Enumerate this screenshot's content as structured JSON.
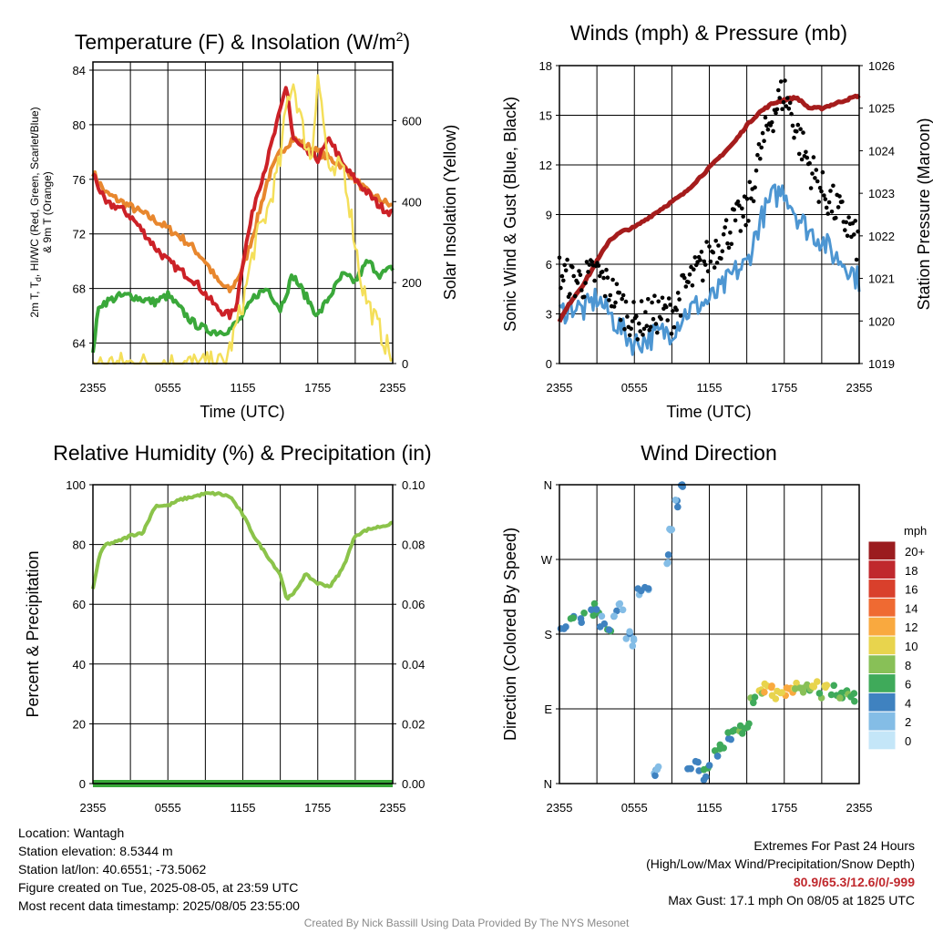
{
  "panels": {
    "temperature": {
      "title_main": "Temperature (F) & Insolation (W/m",
      "title_sup": "2",
      "title_end": ")",
      "ylabel_left_line1": "2m T, T",
      "ylabel_left_sub": "d",
      "ylabel_left_rest": ", HI/WC (Red, Green, Scarlet/Blue)",
      "ylabel_left_line2": "& 9m T (Orange)",
      "ylabel_right": "Solar Insolation (Yellow)",
      "xlabel": "Time (UTC)"
    },
    "winds": {
      "title": "Winds (mph) & Pressure (mb)",
      "ylabel_left": "Sonic Wind & Gust (Blue, Black)",
      "ylabel_right": "Station Pressure (Maroon)",
      "xlabel": "Time (UTC)"
    },
    "humidity": {
      "title": "Relative Humidity (%) & Precipitation (in)",
      "ylabel_left": "Percent & Precipitation"
    },
    "direction": {
      "title": "Wind Direction",
      "ylabel_left": "Direction (Colored By Speed)",
      "legend_unit": "mph"
    }
  },
  "chart_data": [
    {
      "type": "line",
      "panel": "temperature",
      "x_ticks": [
        "2355",
        "0555",
        "1155",
        "1755",
        "2355"
      ],
      "x_hours": [
        0,
        6,
        12,
        18,
        24
      ],
      "ylim_left": [
        62.5,
        84.6
      ],
      "yticks_left": [
        64,
        68,
        72,
        76,
        80,
        84
      ],
      "ylim_right": [
        0,
        745
      ],
      "yticks_right": [
        0,
        200,
        400,
        600
      ],
      "series": [
        {
          "axis": "left",
          "color": "#e8872e",
          "x": [
            0,
            1,
            2,
            3,
            4,
            5,
            6,
            7,
            8,
            9,
            10,
            11,
            12,
            13,
            14,
            15,
            16,
            17,
            18,
            19,
            20,
            21,
            22,
            23,
            24
          ],
          "y": [
            76.5,
            75,
            74.5,
            74,
            73.5,
            73,
            72.4,
            71.8,
            71,
            70,
            68.5,
            67.8,
            69.5,
            72.5,
            76,
            78,
            79,
            78.5,
            78,
            77.5,
            77,
            76,
            75,
            74.5,
            74
          ]
        },
        {
          "axis": "left",
          "color": "#cc2127",
          "x": [
            0,
            1,
            2,
            3,
            4,
            5,
            6,
            7,
            8,
            9,
            10,
            11,
            11.5,
            12,
            13,
            14,
            15,
            15.5,
            16,
            17,
            18,
            19,
            20,
            21,
            22,
            23,
            24
          ],
          "y": [
            76.5,
            74.2,
            74,
            73.3,
            72.2,
            71,
            70,
            69.3,
            68.7,
            67.6,
            66.5,
            66,
            66.8,
            70,
            74.5,
            77.5,
            81,
            83,
            79,
            78,
            77.5,
            79,
            77,
            76,
            75,
            74,
            73.5
          ]
        },
        {
          "axis": "left",
          "color": "#3aa83a",
          "x": [
            0,
            0.5,
            1,
            2,
            3,
            4,
            5,
            6,
            7,
            8,
            9,
            10,
            11,
            12,
            13,
            14,
            15,
            16,
            17,
            18,
            19,
            20,
            21,
            22,
            23,
            24
          ],
          "y": [
            63.5,
            66.8,
            67,
            67.4,
            67.5,
            67.2,
            67,
            67.5,
            66.5,
            65.5,
            65,
            64.8,
            65,
            66,
            67.5,
            68,
            66.5,
            69,
            67.5,
            66,
            67.5,
            69,
            68.5,
            70,
            69,
            69.5
          ]
        },
        {
          "axis": "right",
          "color": "#f4df5a",
          "x": [
            0,
            10.5,
            11,
            12,
            13,
            14,
            15,
            15.5,
            16,
            17,
            17.5,
            18,
            19,
            20,
            21,
            21.5,
            22,
            23,
            24
          ],
          "y": [
            0,
            0,
            40,
            150,
            300,
            380,
            500,
            640,
            700,
            550,
            500,
            720,
            450,
            500,
            300,
            200,
            150,
            80,
            10
          ]
        }
      ]
    },
    {
      "type": "scatter",
      "panel": "winds",
      "x_ticks": [
        "2355",
        "0555",
        "1155",
        "1755",
        "2355"
      ],
      "x_hours": [
        0,
        6,
        12,
        18,
        24
      ],
      "ylim_left": [
        0,
        18
      ],
      "yticks_left": [
        0,
        3,
        6,
        9,
        12,
        15,
        18
      ],
      "ylim_right": [
        1019,
        1026
      ],
      "yticks_right": [
        1019,
        1020,
        1021,
        1022,
        1023,
        1024,
        1025,
        1026
      ],
      "series": [
        {
          "role": "pressure",
          "axis": "right",
          "color": "#a51c1c",
          "x": [
            0,
            1,
            2,
            3,
            4,
            5,
            6,
            7,
            8,
            9,
            10,
            11,
            12,
            13,
            14,
            15,
            16,
            17,
            18,
            19,
            20,
            21,
            22,
            23,
            24
          ],
          "y": [
            1020,
            1020.5,
            1020.9,
            1021.4,
            1021.9,
            1022.1,
            1022.2,
            1022.4,
            1022.6,
            1022.8,
            1023,
            1023.3,
            1023.6,
            1023.9,
            1024.2,
            1024.6,
            1024.9,
            1025.1,
            1025.2,
            1025.25,
            1025,
            1025,
            1025.1,
            1025.2,
            1025.3
          ]
        },
        {
          "role": "wind",
          "axis": "left",
          "color": "#4d96d2",
          "x": [
            0,
            1,
            2,
            3,
            4,
            5,
            6,
            7,
            8,
            9,
            10,
            11,
            12,
            13,
            14,
            15,
            16,
            17,
            18,
            19,
            20,
            21,
            22,
            23,
            24
          ],
          "y": [
            3,
            3.5,
            3.2,
            4,
            3,
            2,
            1.2,
            1.5,
            1.8,
            2,
            3,
            3.5,
            3.8,
            4.5,
            5.5,
            6,
            8.5,
            10,
            10.5,
            9,
            8,
            7.5,
            6.5,
            6,
            5
          ]
        },
        {
          "role": "gust",
          "axis": "left",
          "color": "#000000",
          "x": [
            0,
            1,
            2,
            3,
            4,
            5,
            6,
            7,
            8,
            9,
            10,
            11,
            12,
            13,
            14,
            15,
            16,
            17,
            18,
            19,
            20,
            21,
            22,
            23,
            24
          ],
          "y": [
            5.5,
            5,
            5,
            5.5,
            4.5,
            3.5,
            2.5,
            2.8,
            3,
            3,
            4.5,
            5.5,
            6.5,
            7.5,
            8.5,
            9,
            12.5,
            15,
            16.5,
            14,
            12,
            10.5,
            9.5,
            8.5,
            7
          ]
        }
      ]
    },
    {
      "type": "line",
      "panel": "humidity",
      "x_ticks": [
        "2355",
        "0555",
        "1155",
        "1755",
        "2355"
      ],
      "x_hours": [
        0,
        6,
        12,
        18,
        24
      ],
      "ylim_left": [
        0,
        100
      ],
      "yticks_left": [
        0,
        20,
        40,
        60,
        80,
        100
      ],
      "ylim_right": [
        0,
        0.1
      ],
      "yticks_right": [
        "0.00",
        "0.02",
        "0.04",
        "0.06",
        "0.08",
        "0.10"
      ],
      "series": [
        {
          "axis": "left",
          "color": "#8bc34a",
          "x": [
            0,
            0.5,
            1,
            2,
            3,
            4,
            5,
            6,
            7,
            8,
            9,
            10,
            11,
            12,
            13,
            14,
            15,
            15.5,
            16,
            17,
            18,
            19,
            20,
            21,
            22,
            23,
            24
          ],
          "y": [
            65,
            76,
            80,
            81,
            83,
            84,
            93,
            93,
            95,
            96,
            97,
            97,
            96,
            90,
            82,
            76,
            70,
            62,
            63,
            70,
            67,
            66,
            72,
            83,
            85,
            86,
            87
          ]
        },
        {
          "axis": "right",
          "color": "#39a839",
          "x": [
            0,
            24
          ],
          "y": [
            0,
            0
          ]
        }
      ]
    },
    {
      "type": "scatter",
      "panel": "direction",
      "x_ticks": [
        "2355",
        "0555",
        "1155",
        "1755",
        "2355"
      ],
      "x_hours": [
        0,
        6,
        12,
        18,
        24
      ],
      "y_ticks": [
        "N",
        "E",
        "S",
        "W",
        "N"
      ],
      "ylim_deg": [
        0,
        360
      ],
      "legend": {
        "labels": [
          "20+",
          "18",
          "16",
          "14",
          "12",
          "10",
          "8",
          "6",
          "4",
          "2",
          "0"
        ],
        "colors": [
          "#9b1c1f",
          "#c0282d",
          "#d9402c",
          "#ef6a32",
          "#f9a93f",
          "#e8d44d",
          "#88c057",
          "#3faa5a",
          "#3f82c0",
          "#84bde6",
          "#c4e6f8"
        ]
      },
      "x": [
        0.3,
        1,
        1.8,
        2.5,
        3,
        3.5,
        4,
        4.5,
        5,
        5.5,
        6,
        6.5,
        7,
        7.5,
        8,
        8.5,
        9,
        9.5,
        10,
        10.5,
        11,
        11.5,
        12,
        12.5,
        13,
        13.5,
        14,
        14.5,
        15,
        15.5,
        16,
        16.5,
        17,
        17.5,
        18,
        18.5,
        19,
        19.5,
        20,
        20.5,
        21,
        21.5,
        22,
        22.5,
        23,
        23.5
      ],
      "y": [
        185,
        195,
        200,
        205,
        210,
        195,
        190,
        205,
        215,
        180,
        170,
        230,
        240,
        10,
        20,
        270,
        310,
        340,
        355,
        15,
        20,
        10,
        25,
        35,
        45,
        55,
        60,
        65,
        70,
        100,
        110,
        115,
        112,
        108,
        110,
        112,
        115,
        110,
        112,
        116,
        110,
        114,
        112,
        108,
        110,
        105
      ],
      "speed": [
        3,
        4,
        3,
        4,
        3,
        2,
        3,
        2,
        1,
        2,
        1,
        2,
        1,
        1,
        0,
        1,
        1,
        1,
        2,
        1,
        2,
        3,
        4,
        4,
        4,
        3,
        4,
        5,
        4,
        6,
        8,
        9,
        10,
        8,
        9,
        10,
        8,
        7,
        6,
        8,
        5,
        7,
        4,
        5,
        6,
        4
      ]
    }
  ],
  "info": {
    "location": "Location: Wantagh",
    "elevation": "Station elevation: 8.5344 m",
    "latlon": "Station lat/lon: 40.6551; -73.5062",
    "created": "Figure created on Tue, 2025-08-05, at 23:59 UTC",
    "recent": "Most recent data timestamp: 2025/08/05 23:55:00"
  },
  "extremes": {
    "heading": "Extremes For Past 24 Hours",
    "legend": "(High/Low/Max Wind/Precipitation/Snow Depth)",
    "values": "80.9/65.3/12.6/0/-999",
    "gust": "Max Gust: 17.1 mph On 08/05 at 1825 UTC"
  },
  "credit": "Created By Nick Bassill Using Data Provided By The NYS Mesonet"
}
